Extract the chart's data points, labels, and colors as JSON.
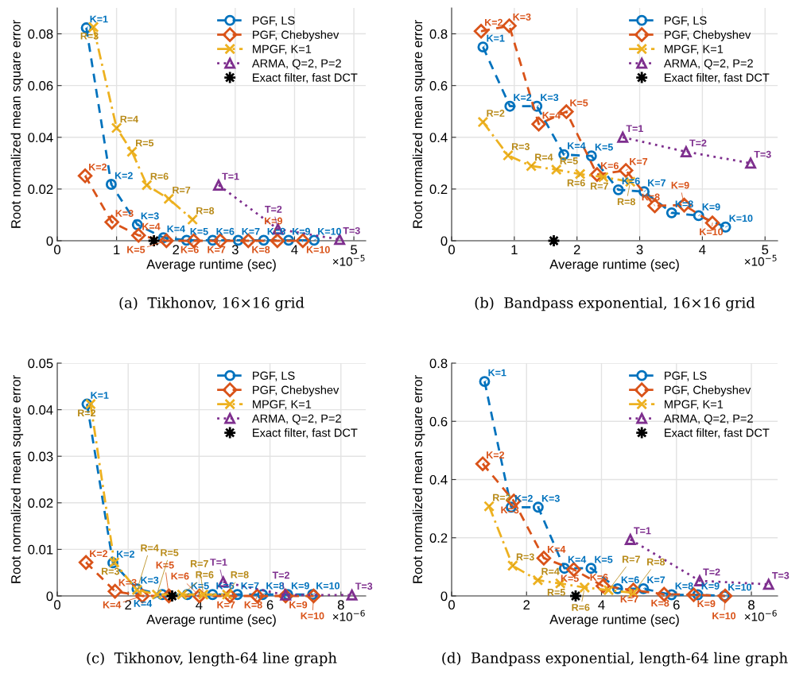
{
  "chart_data": [
    {
      "type": "line",
      "title": "(a)  Tikhonov, 16×16 grid",
      "xlabel": "Average runtime (sec)",
      "ylabel": "Root normalized mean square error",
      "xlim": [
        0,
        5.2
      ],
      "ylim": [
        0,
        0.09
      ],
      "xticks": [
        0,
        1,
        2,
        3,
        4,
        5
      ],
      "yticks": [
        0,
        0.02,
        0.04,
        0.06,
        0.08
      ],
      "grid": true,
      "legend": "top right",
      "annotations": [
        "×10$^{−5}$",
        {
          "text": "K=1",
          "x": 0.49,
          "y": 0.0823
        },
        {
          "text": "K=2",
          "x": 0.91,
          "y": 0.0218
        },
        {
          "text": "K=3",
          "x": 1.35,
          "y": 0.0062
        },
        {
          "text": "K=4",
          "x": 1.79,
          "y": 0.0012
        },
        {
          "text": "K=5",
          "x": 2.18,
          "y": 0.0002
        },
        {
          "text": "K=6",
          "x": 2.62,
          "y": 0.0002
        },
        {
          "text": "K=7",
          "x": 3.05,
          "y": 0.0002
        },
        {
          "text": "K=8",
          "x": 3.48,
          "y": 0.0002
        },
        {
          "text": "K=9",
          "x": 3.9,
          "y": 0.0002
        },
        {
          "text": "K=10",
          "x": 4.33,
          "y": 0.0002
        },
        {
          "text": "K=2",
          "x": 0.47,
          "y": 0.0251
        },
        {
          "text": "K=3",
          "x": 0.92,
          "y": 0.0072
        },
        {
          "text": "K=4",
          "x": 1.37,
          "y": 0.0021
        },
        {
          "text": "K=5",
          "x": 1.84,
          "y": 0
        },
        {
          "text": "K=6",
          "x": 2.3,
          "y": 0
        },
        {
          "text": "K=7",
          "x": 2.75,
          "y": 0
        },
        {
          "text": "K=8",
          "x": 3.22,
          "y": 0
        },
        {
          "text": "K=9",
          "x": 3.71,
          "y": 0
        },
        {
          "text": "K=10",
          "x": 4.14,
          "y": 0
        },
        {
          "text": "R=3",
          "x": 0.61,
          "y": 0.0826
        },
        {
          "text": "R=4",
          "x": 1.0,
          "y": 0.0436
        },
        {
          "text": "R=5",
          "x": 1.26,
          "y": 0.0344
        },
        {
          "text": "R=6",
          "x": 1.51,
          "y": 0.0215
        },
        {
          "text": "R=7",
          "x": 1.88,
          "y": 0.0162
        },
        {
          "text": "R=8",
          "x": 2.28,
          "y": 0.0082
        },
        {
          "text": "T=1",
          "x": 2.72,
          "y": 0.0215
        },
        {
          "text": "T=2",
          "x": 3.72,
          "y": 0.0045
        },
        {
          "text": "T=3",
          "x": 4.76,
          "y": 0.0005
        }
      ],
      "series": [
        {
          "name": "PGF, LS",
          "color": "#0072bd",
          "marker": "circle",
          "line_style": "dashed",
          "x": [
            0.49,
            0.91,
            1.35,
            1.79,
            2.18,
            2.62,
            3.05,
            3.48,
            3.9,
            4.33
          ],
          "values": [
            0.0823,
            0.0218,
            0.0062,
            0.0012,
            0.0002,
            0.0002,
            0.0002,
            0.0002,
            0.0002,
            0.0002
          ]
        },
        {
          "name": "PGF, Chebyshev",
          "color": "#d95319",
          "marker": "diamond",
          "line_style": "dashed",
          "x": [
            0.47,
            0.92,
            1.37,
            1.84,
            2.3,
            2.75,
            3.22,
            3.71,
            4.14
          ],
          "values": [
            0.0251,
            0.0072,
            0.0021,
            0,
            0,
            0,
            0,
            0,
            0
          ]
        },
        {
          "name": "MPGF, K=1",
          "color": "#edb120",
          "marker": "cross",
          "line_style": "dashdot",
          "x": [
            0.61,
            1.0,
            1.26,
            1.51,
            1.88,
            2.28
          ],
          "values": [
            0.0826,
            0.0436,
            0.0344,
            0.0215,
            0.0162,
            0.0082
          ]
        },
        {
          "name": "ARMA, Q=2, P=2",
          "color": "#7e2f8e",
          "marker": "triangle",
          "line_style": "dotted",
          "x": [
            2.72,
            3.72,
            4.76
          ],
          "values": [
            0.0215,
            0.0045,
            0.0005
          ]
        },
        {
          "name": "Exact filter, fast DCT",
          "type": "scatter",
          "color": "#000000",
          "marker": "star",
          "x": [
            1.63
          ],
          "values": [
            0
          ]
        }
      ]
    },
    {
      "type": "line",
      "title": "(b)  Bandpass exponential, 16×16 grid",
      "xlabel": "Average runtime (sec)",
      "ylabel": "Root normalized mean square error",
      "xlim": [
        0,
        5.2
      ],
      "ylim": [
        0,
        0.9
      ],
      "xticks": [
        0,
        1,
        2,
        3,
        4,
        5
      ],
      "yticks": [
        0,
        0.2,
        0.4,
        0.6,
        0.8
      ],
      "grid": true,
      "legend": "top right",
      "annotations": [
        "×10$^{−5}$",
        {
          "text": "K=1",
          "x": 0.5,
          "y": 0.749
        },
        {
          "text": "K=2",
          "x": 0.93,
          "y": 0.52
        },
        {
          "text": "K=3",
          "x": 1.36,
          "y": 0.52
        },
        {
          "text": "K=4",
          "x": 1.79,
          "y": 0.333
        },
        {
          "text": "K=5",
          "x": 2.23,
          "y": 0.328
        },
        {
          "text": "K=6",
          "x": 2.66,
          "y": 0.197
        },
        {
          "text": "K=7",
          "x": 3.07,
          "y": 0.19
        },
        {
          "text": "K=8",
          "x": 3.51,
          "y": 0.108
        },
        {
          "text": "K=9",
          "x": 3.94,
          "y": 0.097
        },
        {
          "text": "K=10",
          "x": 4.37,
          "y": 0.053
        },
        {
          "text": "K=2",
          "x": 0.47,
          "y": 0.81
        },
        {
          "text": "K=3",
          "x": 0.92,
          "y": 0.831
        },
        {
          "text": "K=4",
          "x": 1.39,
          "y": 0.451
        },
        {
          "text": "K=5",
          "x": 1.83,
          "y": 0.499
        },
        {
          "text": "K=6",
          "x": 2.32,
          "y": 0.256
        },
        {
          "text": "K=7",
          "x": 2.78,
          "y": 0.272
        },
        {
          "text": "K=8",
          "x": 3.24,
          "y": 0.135
        },
        {
          "text": "K=9",
          "x": 3.71,
          "y": 0.138
        },
        {
          "text": "K=10",
          "x": 4.16,
          "y": 0.069
        },
        {
          "text": "R=2",
          "x": 0.5,
          "y": 0.459
        },
        {
          "text": "R=3",
          "x": 0.9,
          "y": 0.33
        },
        {
          "text": "R=4",
          "x": 1.27,
          "y": 0.289
        },
        {
          "text": "R=5",
          "x": 1.67,
          "y": 0.275
        },
        {
          "text": "R=6",
          "x": 2.05,
          "y": 0.258
        },
        {
          "text": "R=7",
          "x": 2.42,
          "y": 0.246
        },
        {
          "text": "R=8",
          "x": 2.85,
          "y": 0.228
        },
        {
          "text": "T=1",
          "x": 2.73,
          "y": 0.4
        },
        {
          "text": "T=2",
          "x": 3.74,
          "y": 0.344
        },
        {
          "text": "T=3",
          "x": 4.77,
          "y": 0.3
        }
      ],
      "series": [
        {
          "name": "PGF, LS",
          "color": "#0072bd",
          "marker": "circle",
          "line_style": "dashed",
          "x": [
            0.5,
            0.93,
            1.36,
            1.79,
            2.23,
            2.66,
            3.07,
            3.51,
            3.94,
            4.37
          ],
          "values": [
            0.749,
            0.52,
            0.52,
            0.333,
            0.328,
            0.197,
            0.19,
            0.108,
            0.097,
            0.053
          ]
        },
        {
          "name": "PGF, Chebyshev",
          "color": "#d95319",
          "marker": "diamond",
          "line_style": "dashed",
          "x": [
            0.47,
            0.92,
            1.39,
            1.83,
            2.32,
            2.78,
            3.24,
            3.71,
            4.16
          ],
          "values": [
            0.81,
            0.831,
            0.451,
            0.499,
            0.256,
            0.272,
            0.135,
            0.138,
            0.069
          ]
        },
        {
          "name": "MPGF, K=1",
          "color": "#edb120",
          "marker": "cross",
          "line_style": "dashdot",
          "x": [
            0.5,
            0.9,
            1.27,
            1.67,
            2.05,
            2.42,
            2.85
          ],
          "values": [
            0.459,
            0.33,
            0.289,
            0.275,
            0.258,
            0.246,
            0.228
          ]
        },
        {
          "name": "ARMA, Q=2, P=2",
          "color": "#7e2f8e",
          "marker": "triangle",
          "line_style": "dotted",
          "x": [
            2.73,
            3.74,
            4.77
          ],
          "values": [
            0.4,
            0.344,
            0.3
          ]
        },
        {
          "name": "Exact filter, fast DCT",
          "type": "scatter",
          "color": "#000000",
          "marker": "star",
          "x": [
            1.63
          ],
          "values": [
            0
          ]
        }
      ]
    },
    {
      "type": "line",
      "title": "(c)  Tikhonov, length-64 line graph",
      "xlabel": "Average runtime (sec)",
      "ylabel": "Root normalized mean square error",
      "xlim": [
        0,
        8.7
      ],
      "ylim": [
        0,
        0.05
      ],
      "xticks": [
        0,
        2,
        4,
        6,
        8
      ],
      "yticks": [
        0,
        0.01,
        0.02,
        0.03,
        0.04,
        0.05
      ],
      "grid": true,
      "legend": "top right",
      "annotations": [
        "×10$^{−6}$",
        {
          "text": "K=1",
          "x": 0.84,
          "y": 0.0412
        },
        {
          "text": "K=2",
          "x": 1.57,
          "y": 0.0071
        },
        {
          "text": "K=3",
          "x": 2.25,
          "y": 0.0015
        },
        {
          "text": "K=4",
          "x": 2.96,
          "y": 0.0003
        },
        {
          "text": "K=5",
          "x": 3.67,
          "y": 0.0003
        },
        {
          "text": "K=6",
          "x": 4.38,
          "y": 0.0003
        },
        {
          "text": "K=7",
          "x": 5.08,
          "y": 0.0003
        },
        {
          "text": "K=8",
          "x": 5.79,
          "y": 0.0003
        },
        {
          "text": "K=9",
          "x": 6.5,
          "y": 0.0003
        },
        {
          "text": "K=10",
          "x": 7.2,
          "y": 0.0003
        },
        {
          "text": "K=2",
          "x": 0.81,
          "y": 0.0072
        },
        {
          "text": "K=3",
          "x": 1.63,
          "y": 0.001
        },
        {
          "text": "K=4",
          "x": 2.4,
          "y": 0
        },
        {
          "text": "K=5",
          "x": 3.15,
          "y": 0
        },
        {
          "text": "K=6",
          "x": 4.01,
          "y": 0
        },
        {
          "text": "K=7",
          "x": 4.87,
          "y": 0
        },
        {
          "text": "K=8",
          "x": 5.64,
          "y": 0
        },
        {
          "text": "K=9",
          "x": 6.44,
          "y": 0
        },
        {
          "text": "K=10",
          "x": 7.23,
          "y": 0
        },
        {
          "text": "R=2",
          "x": 0.94,
          "y": 0.0412
        },
        {
          "text": "R=3",
          "x": 1.61,
          "y": 0.0072
        },
        {
          "text": "R=4",
          "x": 2.25,
          "y": 0.0013
        },
        {
          "text": "R=5",
          "x": 2.81,
          "y": 0.0003
        },
        {
          "text": "R=6",
          "x": 3.52,
          "y": 0.0003
        },
        {
          "text": "R=7",
          "x": 4.12,
          "y": 0.0003
        },
        {
          "text": "R=8",
          "x": 4.79,
          "y": 0.0003
        },
        {
          "text": "T=1",
          "x": 4.68,
          "y": 0.003
        },
        {
          "text": "T=2",
          "x": 6.44,
          "y": 0.0002
        },
        {
          "text": "T=3",
          "x": 8.31,
          "y": 0.0002
        }
      ],
      "series": [
        {
          "name": "PGF, LS",
          "color": "#0072bd",
          "marker": "circle",
          "line_style": "dashed",
          "x": [
            0.84,
            1.57,
            2.25,
            2.96,
            3.67,
            4.38,
            5.08,
            5.79,
            6.5,
            7.2
          ],
          "values": [
            0.0412,
            0.0071,
            0.0015,
            0.0003,
            0.0003,
            0.0003,
            0.0003,
            0.0003,
            0.0003,
            0.0003
          ]
        },
        {
          "name": "PGF, Chebyshev",
          "color": "#d95319",
          "marker": "diamond",
          "line_style": "dashed",
          "x": [
            0.81,
            1.63,
            2.4,
            3.15,
            4.01,
            4.87,
            5.64,
            6.44,
            7.23
          ],
          "values": [
            0.0072,
            0.001,
            0,
            0,
            0,
            0,
            0,
            0,
            0
          ]
        },
        {
          "name": "MPGF, K=1",
          "color": "#edb120",
          "marker": "cross",
          "line_style": "dashdot",
          "x": [
            0.94,
            1.61,
            2.25,
            2.81,
            3.52,
            4.12,
            4.79
          ],
          "values": [
            0.0412,
            0.0072,
            0.0013,
            0.0003,
            0.0003,
            0.0003,
            0.0003
          ]
        },
        {
          "name": "ARMA, Q=2, P=2",
          "color": "#7e2f8e",
          "marker": "triangle",
          "line_style": "dotted",
          "x": [
            4.68,
            6.44,
            8.31
          ],
          "values": [
            0.003,
            0.0002,
            0.0002
          ]
        },
        {
          "name": "Exact filter, fast DCT",
          "type": "scatter",
          "color": "#000000",
          "marker": "star",
          "x": [
            3.24
          ],
          "values": [
            0
          ]
        }
      ]
    },
    {
      "type": "line",
      "title": "(d)  Bandpass exponential, length-64 line graph",
      "xlabel": "Average runtime (sec)",
      "ylabel": "Root normalized mean square error",
      "xlim": [
        0,
        8.7
      ],
      "ylim": [
        0,
        0.8
      ],
      "xticks": [
        0,
        2,
        4,
        6,
        8
      ],
      "yticks": [
        0,
        0.2,
        0.4,
        0.6,
        0.8
      ],
      "grid": true,
      "legend": "top right",
      "annotations": [
        "×10$^{−6}$",
        {
          "text": "K=1",
          "x": 0.88,
          "y": 0.737
        },
        {
          "text": "K=2",
          "x": 1.59,
          "y": 0.305
        },
        {
          "text": "K=3",
          "x": 2.31,
          "y": 0.305
        },
        {
          "text": "K=4",
          "x": 3.01,
          "y": 0.095
        },
        {
          "text": "K=5",
          "x": 3.72,
          "y": 0.095
        },
        {
          "text": "K=6",
          "x": 4.43,
          "y": 0.025
        },
        {
          "text": "K=7",
          "x": 5.12,
          "y": 0.025
        },
        {
          "text": "K=8",
          "x": 5.87,
          "y": 0.004
        },
        {
          "text": "K=9",
          "x": 6.57,
          "y": 0.004
        },
        {
          "text": "K=10",
          "x": 7.28,
          "y": 0
        },
        {
          "text": "K=2",
          "x": 0.83,
          "y": 0.454
        },
        {
          "text": "K=3",
          "x": 1.66,
          "y": 0.326
        },
        {
          "text": "K=4",
          "x": 2.46,
          "y": 0.13
        },
        {
          "text": "K=5",
          "x": 3.26,
          "y": 0.091
        },
        {
          "text": "K=6",
          "x": 4.04,
          "y": 0.034
        },
        {
          "text": "K=7",
          "x": 4.85,
          "y": 0.02
        },
        {
          "text": "K=8",
          "x": 5.67,
          "y": 0.006
        },
        {
          "text": "K=9",
          "x": 6.46,
          "y": 0.004
        },
        {
          "text": "K=10",
          "x": 7.3,
          "y": 0
        },
        {
          "text": "R=2",
          "x": 1.0,
          "y": 0.308
        },
        {
          "text": "R=3",
          "x": 1.63,
          "y": 0.104
        },
        {
          "text": "R=4",
          "x": 2.3,
          "y": 0.054
        },
        {
          "text": "R=5",
          "x": 2.9,
          "y": 0.043
        },
        {
          "text": "R=6",
          "x": 3.55,
          "y": 0.029
        },
        {
          "text": "R=7",
          "x": 4.19,
          "y": 0.02
        },
        {
          "text": "R=8",
          "x": 4.85,
          "y": 0.011
        },
        {
          "text": "T=1",
          "x": 4.77,
          "y": 0.194
        },
        {
          "text": "T=2",
          "x": 6.62,
          "y": 0.052
        },
        {
          "text": "T=3",
          "x": 8.46,
          "y": 0.04
        }
      ],
      "series": [
        {
          "name": "PGF, LS",
          "color": "#0072bd",
          "marker": "circle",
          "line_style": "dashed",
          "x": [
            0.88,
            1.59,
            2.31,
            3.01,
            3.72,
            4.43,
            5.12,
            5.87,
            6.57,
            7.28
          ],
          "values": [
            0.737,
            0.305,
            0.305,
            0.095,
            0.095,
            0.025,
            0.025,
            0.004,
            0.004,
            0
          ]
        },
        {
          "name": "PGF, Chebyshev",
          "color": "#d95319",
          "marker": "diamond",
          "line_style": "dashed",
          "x": [
            0.83,
            1.66,
            2.46,
            3.26,
            4.04,
            4.85,
            5.67,
            6.46,
            7.3
          ],
          "values": [
            0.454,
            0.326,
            0.13,
            0.091,
            0.034,
            0.02,
            0.006,
            0.004,
            0
          ]
        },
        {
          "name": "MPGF, K=1",
          "color": "#edb120",
          "marker": "cross",
          "line_style": "dashdot",
          "x": [
            1.0,
            1.63,
            2.3,
            2.9,
            3.55,
            4.19,
            4.85
          ],
          "values": [
            0.308,
            0.104,
            0.054,
            0.043,
            0.029,
            0.02,
            0.011
          ]
        },
        {
          "name": "ARMA, Q=2, P=2",
          "color": "#7e2f8e",
          "marker": "triangle",
          "line_style": "dotted",
          "x": [
            4.77,
            6.62,
            8.46
          ],
          "values": [
            0.194,
            0.052,
            0.04
          ]
        },
        {
          "name": "Exact filter, fast DCT",
          "type": "scatter",
          "color": "#000000",
          "marker": "star",
          "x": [
            3.31
          ],
          "values": [
            0
          ]
        }
      ]
    }
  ]
}
